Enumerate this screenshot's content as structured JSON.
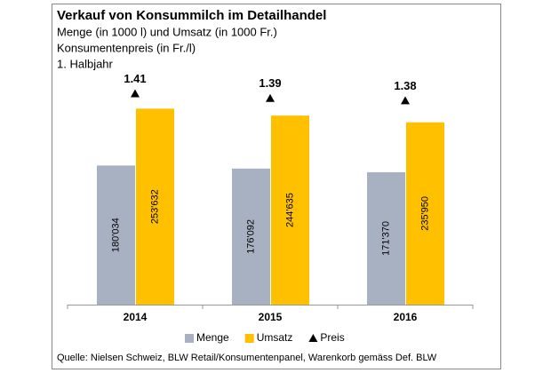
{
  "chart_data": {
    "type": "bar",
    "title": "Verkauf von Konsummilch im Detailhandel",
    "subtitle": [
      "Menge (in 1000 l) und Umsatz (in 1000 Fr.)",
      "Konsumentenpreis (in Fr./l)",
      "1. Halbjahr"
    ],
    "categories": [
      "2014",
      "2015",
      "2016"
    ],
    "series": [
      {
        "name": "Menge",
        "color": "#a7b1c2",
        "values": [
          180034,
          176092,
          171370
        ],
        "value_labels": [
          "180'034",
          "176'092",
          "171'370"
        ]
      },
      {
        "name": "Umsatz",
        "color": "#ffc000",
        "values": [
          253632,
          244635,
          235950
        ],
        "value_labels": [
          "253'632",
          "244'635",
          "235'950"
        ]
      },
      {
        "name": "Preis",
        "color": "#000000",
        "axis": "y2",
        "mark": "triangle",
        "values": [
          1.41,
          1.39,
          1.38
        ]
      }
    ],
    "ylim": [
      0,
      300000
    ],
    "y2lim": [
      0.5,
      1.5
    ],
    "legend": "bottom",
    "source": "Quelle: Nielsen Schweiz, BLW Retail/Konsumentenpanel, Warenkorb gemäss Def. BLW"
  }
}
